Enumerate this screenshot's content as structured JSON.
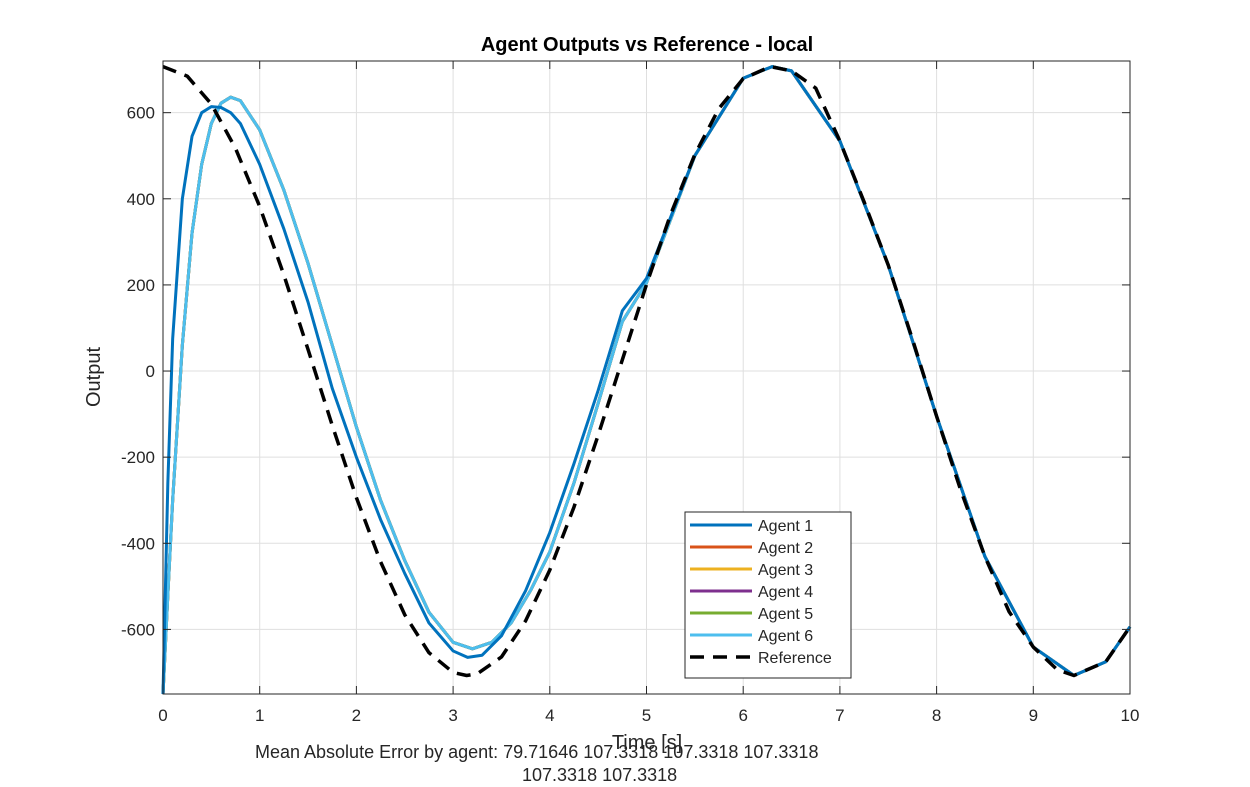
{
  "chart_data": {
    "type": "line",
    "title": "Agent Outputs vs Reference - local",
    "xlabel": "Time [s]",
    "ylabel": "Output",
    "xlim": [
      0,
      10
    ],
    "ylim": [
      -750,
      720
    ],
    "xticks": [
      0,
      1,
      2,
      3,
      4,
      5,
      6,
      7,
      8,
      9,
      10
    ],
    "yticks": [
      -600,
      -400,
      -200,
      0,
      200,
      400,
      600
    ],
    "grid": true,
    "legend_position": "bottom-center",
    "series": [
      {
        "name": "Agent 1",
        "color": "#0072BD",
        "style": "solid",
        "x": [
          0,
          0.05,
          0.1,
          0.2,
          0.3,
          0.4,
          0.5,
          0.6,
          0.7,
          0.8,
          1.0,
          1.25,
          1.5,
          1.75,
          2.0,
          2.25,
          2.5,
          2.75,
          3.0,
          3.15,
          3.3,
          3.5,
          3.75,
          4.0,
          4.25,
          4.5,
          4.75,
          5.0,
          5.5,
          6.0,
          6.3,
          6.5,
          7.0,
          7.5,
          8.0,
          8.5,
          9.0,
          9.42,
          9.75,
          10.0
        ],
        "y": [
          -750,
          -260,
          75,
          400,
          545,
          600,
          614,
          612,
          600,
          575,
          480,
          330,
          160,
          -40,
          -200,
          -345,
          -470,
          -585,
          -650,
          -665,
          -660,
          -615,
          -510,
          -375,
          -215,
          -45,
          140,
          215,
          500,
          680,
          707,
          697,
          534,
          246,
          -105,
          -431,
          -641,
          -707,
          -675,
          -594
        ]
      },
      {
        "name": "Agent 2",
        "color": "#D95319",
        "style": "solid",
        "x": [
          0,
          0.05,
          0.1,
          0.2,
          0.3,
          0.4,
          0.5,
          0.6,
          0.7,
          0.8,
          1.0,
          1.25,
          1.5,
          1.75,
          2.0,
          2.25,
          2.5,
          2.75,
          3.0,
          3.2,
          3.4,
          3.6,
          3.8,
          4.0,
          4.25,
          4.5,
          4.75,
          5.0,
          5.5,
          6.0,
          6.3,
          6.5,
          7.0,
          7.5,
          8.0,
          8.5,
          9.0,
          9.42,
          9.75,
          10.0
        ],
        "y": [
          -750,
          -520,
          -300,
          60,
          320,
          480,
          575,
          622,
          636,
          628,
          560,
          420,
          250,
          60,
          -130,
          -300,
          -440,
          -560,
          -630,
          -645,
          -630,
          -585,
          -510,
          -420,
          -260,
          -75,
          115,
          205,
          500,
          680,
          707,
          697,
          534,
          246,
          -105,
          -431,
          -641,
          -707,
          -675,
          -594
        ]
      },
      {
        "name": "Agent 3",
        "color": "#EDB120",
        "style": "solid",
        "x": [
          0,
          0.05,
          0.1,
          0.2,
          0.3,
          0.4,
          0.5,
          0.6,
          0.7,
          0.8,
          1.0,
          1.25,
          1.5,
          1.75,
          2.0,
          2.25,
          2.5,
          2.75,
          3.0,
          3.2,
          3.4,
          3.6,
          3.8,
          4.0,
          4.25,
          4.5,
          4.75,
          5.0,
          5.5,
          6.0,
          6.3,
          6.5,
          7.0,
          7.5,
          8.0,
          8.5,
          9.0,
          9.42,
          9.75,
          10.0
        ],
        "y": [
          -750,
          -520,
          -300,
          60,
          320,
          480,
          575,
          622,
          636,
          628,
          560,
          420,
          250,
          60,
          -130,
          -300,
          -440,
          -560,
          -630,
          -645,
          -630,
          -585,
          -510,
          -420,
          -260,
          -75,
          115,
          205,
          500,
          680,
          707,
          697,
          534,
          246,
          -105,
          -431,
          -641,
          -707,
          -675,
          -594
        ]
      },
      {
        "name": "Agent 4",
        "color": "#7E2F8E",
        "style": "solid",
        "x": [
          0,
          0.05,
          0.1,
          0.2,
          0.3,
          0.4,
          0.5,
          0.6,
          0.7,
          0.8,
          1.0,
          1.25,
          1.5,
          1.75,
          2.0,
          2.25,
          2.5,
          2.75,
          3.0,
          3.2,
          3.4,
          3.6,
          3.8,
          4.0,
          4.25,
          4.5,
          4.75,
          5.0,
          5.5,
          6.0,
          6.3,
          6.5,
          7.0,
          7.5,
          8.0,
          8.5,
          9.0,
          9.42,
          9.75,
          10.0
        ],
        "y": [
          -750,
          -520,
          -300,
          60,
          320,
          480,
          575,
          622,
          636,
          628,
          560,
          420,
          250,
          60,
          -130,
          -300,
          -440,
          -560,
          -630,
          -645,
          -630,
          -585,
          -510,
          -420,
          -260,
          -75,
          115,
          205,
          500,
          680,
          707,
          697,
          534,
          246,
          -105,
          -431,
          -641,
          -707,
          -675,
          -594
        ]
      },
      {
        "name": "Agent 5",
        "color": "#77AC30",
        "style": "solid",
        "x": [
          0,
          0.05,
          0.1,
          0.2,
          0.3,
          0.4,
          0.5,
          0.6,
          0.7,
          0.8,
          1.0,
          1.25,
          1.5,
          1.75,
          2.0,
          2.25,
          2.5,
          2.75,
          3.0,
          3.2,
          3.4,
          3.6,
          3.8,
          4.0,
          4.25,
          4.5,
          4.75,
          5.0,
          5.5,
          6.0,
          6.3,
          6.5,
          7.0,
          7.5,
          8.0,
          8.5,
          9.0,
          9.42,
          9.75,
          10.0
        ],
        "y": [
          -750,
          -520,
          -300,
          60,
          320,
          480,
          575,
          622,
          636,
          628,
          560,
          420,
          250,
          60,
          -130,
          -300,
          -440,
          -560,
          -630,
          -645,
          -630,
          -585,
          -510,
          -420,
          -260,
          -75,
          115,
          205,
          500,
          680,
          707,
          697,
          534,
          246,
          -105,
          -431,
          -641,
          -707,
          -675,
          -594
        ]
      },
      {
        "name": "Agent 6",
        "color": "#4DBEEE",
        "style": "solid",
        "x": [
          0,
          0.05,
          0.1,
          0.2,
          0.3,
          0.4,
          0.5,
          0.6,
          0.7,
          0.8,
          1.0,
          1.25,
          1.5,
          1.75,
          2.0,
          2.25,
          2.5,
          2.75,
          3.0,
          3.2,
          3.4,
          3.6,
          3.8,
          4.0,
          4.25,
          4.5,
          4.75,
          5.0,
          5.5,
          6.0,
          6.3,
          6.5,
          7.0,
          7.5,
          8.0,
          8.5,
          9.0,
          9.42,
          9.75,
          10.0
        ],
        "y": [
          -750,
          -520,
          -300,
          60,
          320,
          480,
          575,
          622,
          636,
          628,
          560,
          420,
          250,
          60,
          -130,
          -300,
          -440,
          -560,
          -630,
          -645,
          -630,
          -585,
          -510,
          -420,
          -260,
          -75,
          115,
          205,
          500,
          680,
          707,
          697,
          534,
          246,
          -105,
          -431,
          -641,
          -707,
          -675,
          -594
        ]
      },
      {
        "name": "Reference",
        "color": "#000000",
        "style": "dashed",
        "x": [
          0,
          0.25,
          0.5,
          0.75,
          1.0,
          1.25,
          1.5,
          1.75,
          2.0,
          2.25,
          2.5,
          2.75,
          3.0,
          3.14,
          3.25,
          3.5,
          3.75,
          4.0,
          4.25,
          4.5,
          4.75,
          5.0,
          5.25,
          5.5,
          5.75,
          6.0,
          6.28,
          6.5,
          6.75,
          7.0,
          7.25,
          7.5,
          7.75,
          8.0,
          8.25,
          8.5,
          8.75,
          9.0,
          9.25,
          9.42,
          9.75,
          10.0
        ],
        "y": [
          707,
          685,
          620,
          517,
          382,
          223,
          50,
          -126,
          -294,
          -443,
          -566,
          -654,
          -700,
          -707,
          -703,
          -664,
          -580,
          -462,
          -316,
          -149,
          26,
          201,
          364,
          503,
          610,
          679,
          707,
          697,
          657,
          534,
          393,
          246,
          74,
          -105,
          -277,
          -431,
          -559,
          -641,
          -694,
          -707,
          -675,
          -594
        ]
      }
    ],
    "annotation": {
      "label": "Mean Absolute Error by agent:",
      "values": [
        "79.71646",
        "107.3318",
        "107.3318",
        "107.3318",
        "107.3318",
        "107.3318"
      ]
    }
  }
}
